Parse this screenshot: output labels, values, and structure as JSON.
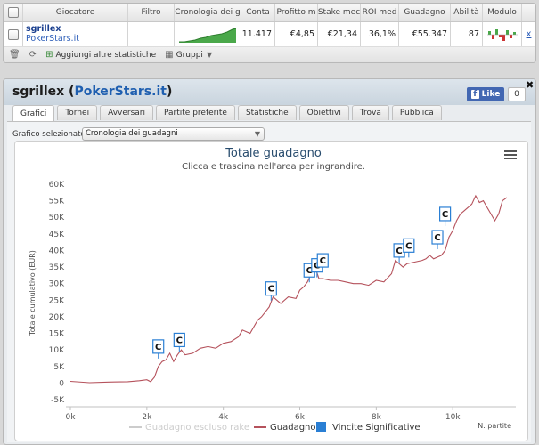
{
  "table": {
    "headers": [
      "Giocatore",
      "Filtro",
      "Cronologia dei g",
      "Conta",
      "Profitto m",
      "Stake mec",
      "ROI med",
      "Guadagno",
      "Abilità",
      "Modulo"
    ],
    "row": {
      "player_name": "sgrillex",
      "site": "PokerStars.it",
      "filter": "",
      "count": "11.417",
      "avg_profit": "€4,85",
      "avg_stake": "€21,34",
      "avg_roi": "36,1%",
      "gain": "€55.347",
      "skill": "87",
      "remove": "x"
    }
  },
  "toolbar": {
    "add_stats": "Aggiungi altre statistiche",
    "groups": "Gruppi"
  },
  "panel": {
    "player": "sgrillex",
    "site": "PokerStars.it",
    "like_label": "Like",
    "like_count": "0",
    "tabs": [
      "Grafici",
      "Tornei",
      "Avversari",
      "Partite preferite",
      "Statistiche",
      "Obiettivi",
      "Trova",
      "Pubblica"
    ],
    "selector_label": "Grafico selezionato",
    "selector_value": "Cronologia dei guadagni"
  },
  "chart_data": {
    "type": "line",
    "title": "Totale guadagno",
    "subtitle": "Clicca e trascina nell'area per ingrandire.",
    "ylabel": "Totale cumulativo (EUR)",
    "xlabel": "N. partite",
    "x_ticks": [
      "0k",
      "2k",
      "4k",
      "6k",
      "8k",
      "10k"
    ],
    "y_ticks": [
      "-5K",
      "0",
      "5K",
      "10K",
      "15K",
      "20K",
      "25K",
      "30K",
      "35K",
      "40K",
      "45K",
      "50K",
      "55K",
      "60K"
    ],
    "xlim": [
      0,
      11417
    ],
    "ylim": [
      -5000,
      60000
    ],
    "series": [
      {
        "name": "Guadagno escluso rake",
        "color": "#cccccc",
        "visible": false
      },
      {
        "name": "Guadagno",
        "color": "#b5525c",
        "visible": true,
        "x": [
          0,
          500,
          1000,
          1500,
          1800,
          2000,
          2100,
          2200,
          2300,
          2400,
          2500,
          2600,
          2700,
          2800,
          2900,
          3000,
          3200,
          3400,
          3600,
          3800,
          4000,
          4200,
          4400,
          4500,
          4700,
          4900,
          5000,
          5200,
          5300,
          5500,
          5700,
          5900,
          6000,
          6100,
          6200,
          6300,
          6400,
          6500,
          6600,
          6800,
          7000,
          7200,
          7400,
          7600,
          7800,
          8000,
          8200,
          8400,
          8500,
          8600,
          8700,
          8800,
          9000,
          9200,
          9300,
          9400,
          9500,
          9600,
          9700,
          9800,
          9900,
          10000,
          10100,
          10200,
          10300,
          10400,
          10500,
          10600,
          10700,
          10800,
          10900,
          11000,
          11100,
          11200,
          11300,
          11417
        ],
        "y": [
          500,
          100,
          300,
          400,
          700,
          1000,
          400,
          1800,
          5000,
          6500,
          7000,
          9000,
          6500,
          8500,
          10000,
          8500,
          9000,
          10500,
          11000,
          10500,
          12000,
          12500,
          14000,
          16000,
          15000,
          19000,
          20000,
          23000,
          26000,
          24000,
          26000,
          25500,
          28000,
          29000,
          30500,
          33000,
          35000,
          31500,
          31500,
          31000,
          31000,
          30500,
          30000,
          30000,
          29500,
          31000,
          30500,
          33000,
          37000,
          36000,
          35000,
          36000,
          36500,
          37000,
          37500,
          38500,
          37500,
          38000,
          38500,
          40000,
          44000,
          46000,
          49000,
          51000,
          52000,
          53000,
          54000,
          56500,
          54500,
          55000,
          53000,
          51000,
          49000,
          51000,
          55000,
          56000
        ]
      },
      {
        "name": "Vincite Significative",
        "color": "#2a7fd4",
        "visible": true,
        "x": [
          2300,
          2850,
          5250,
          6250,
          6450,
          6600,
          8600,
          8850,
          9600,
          9800
        ],
        "y": [
          9000,
          11000,
          26500,
          32000,
          33500,
          35000,
          38000,
          39500,
          42000,
          49000
        ],
        "label": "C"
      }
    ],
    "legend_position": "bottom-center",
    "grid": false
  },
  "colors": {
    "accent": "#1f5fb0",
    "line": "#b5525c",
    "marker": "#2a7fd4"
  }
}
